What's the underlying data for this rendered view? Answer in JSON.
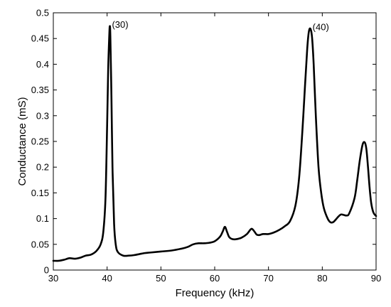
{
  "chart_data": {
    "type": "line",
    "title": "",
    "xlabel": "Frequency (kHz)",
    "ylabel": "Conductance (mS)",
    "xlim": [
      30,
      90
    ],
    "ylim": [
      0,
      0.5
    ],
    "xticks": [
      30,
      40,
      50,
      60,
      70,
      80,
      90
    ],
    "yticks": [
      0,
      0.05,
      0.1,
      0.15,
      0.2,
      0.25,
      0.3,
      0.35,
      0.4,
      0.45,
      0.5
    ],
    "xtick_labels": [
      "30",
      "40",
      "50",
      "60",
      "70",
      "80",
      "90"
    ],
    "ytick_labels": [
      "0",
      "0.05",
      "0.1",
      "0.15",
      "0.2",
      "0.25",
      "0.3",
      "0.35",
      "0.4",
      "0.45",
      "0.5"
    ],
    "grid": false,
    "annotations": [
      {
        "text": "(30)",
        "x": 40.5,
        "y": 0.474
      },
      {
        "text": "(40)",
        "x": 77.8,
        "y": 0.469
      }
    ],
    "series": [
      {
        "color": "#000000",
        "x": [
          30,
          31,
          32,
          33,
          34,
          35,
          36,
          37,
          38,
          38.8,
          39.3,
          39.7,
          40.0,
          40.2,
          40.4,
          40.5,
          40.6,
          40.8,
          41.0,
          41.3,
          41.6,
          42.0,
          43,
          44,
          45,
          46,
          47,
          48,
          50,
          52,
          54,
          55,
          56,
          57,
          58,
          59,
          60,
          61,
          61.5,
          61.9,
          62.3,
          62.7,
          63.3,
          64,
          65,
          66,
          66.8,
          67.3,
          67.8,
          68.3,
          69,
          70,
          71,
          72,
          73,
          74,
          75,
          75.7,
          76.3,
          76.8,
          77.2,
          77.5,
          77.8,
          78.1,
          78.4,
          78.8,
          79.3,
          79.8,
          80.3,
          81,
          81.5,
          82,
          82.5,
          83,
          83.5,
          84,
          84.5,
          85,
          86,
          86.5,
          87,
          87.5,
          87.9,
          88.2,
          88.5,
          88.8,
          89.1,
          89.5,
          90
        ],
        "y": [
          0.018,
          0.018,
          0.02,
          0.023,
          0.022,
          0.024,
          0.028,
          0.03,
          0.037,
          0.05,
          0.075,
          0.14,
          0.28,
          0.39,
          0.455,
          0.474,
          0.455,
          0.34,
          0.2,
          0.09,
          0.05,
          0.035,
          0.028,
          0.028,
          0.029,
          0.031,
          0.033,
          0.034,
          0.036,
          0.038,
          0.042,
          0.045,
          0.05,
          0.052,
          0.052,
          0.053,
          0.056,
          0.065,
          0.075,
          0.084,
          0.074,
          0.064,
          0.06,
          0.06,
          0.063,
          0.07,
          0.08,
          0.076,
          0.069,
          0.068,
          0.07,
          0.07,
          0.073,
          0.078,
          0.085,
          0.095,
          0.125,
          0.18,
          0.27,
          0.36,
          0.43,
          0.463,
          0.469,
          0.452,
          0.4,
          0.3,
          0.2,
          0.15,
          0.12,
          0.1,
          0.093,
          0.093,
          0.098,
          0.104,
          0.108,
          0.107,
          0.106,
          0.11,
          0.14,
          0.175,
          0.215,
          0.244,
          0.248,
          0.235,
          0.2,
          0.16,
          0.13,
          0.112,
          0.105
        ]
      }
    ]
  }
}
